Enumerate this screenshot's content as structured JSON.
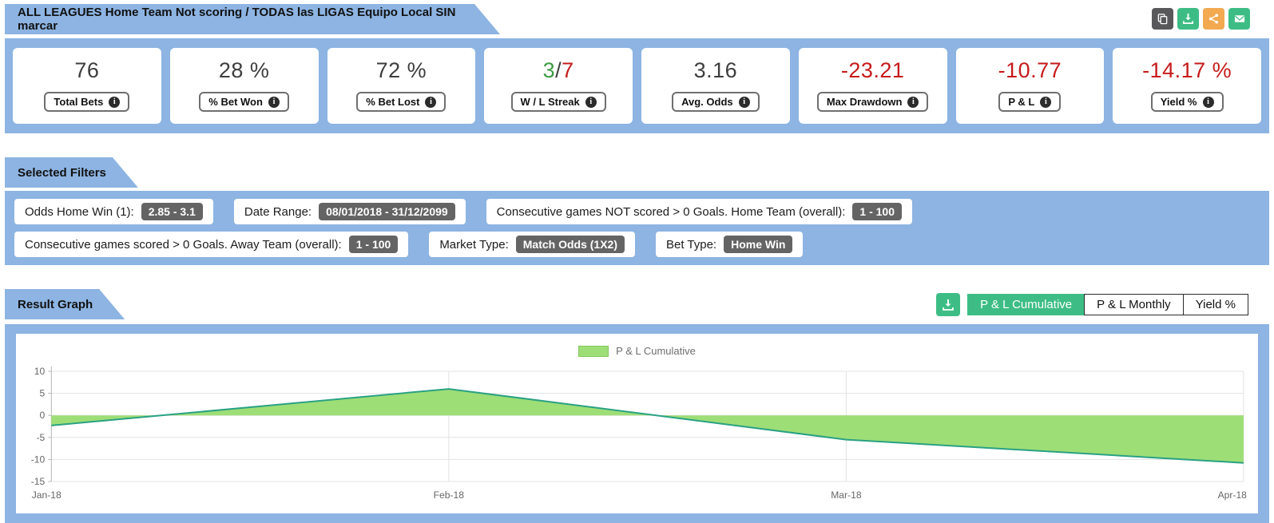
{
  "header": {
    "title": "ALL LEAGUES Home Team Not scoring / TODAS las LIGAS Equipo Local SIN marcar",
    "actions": {
      "copy_color": "#58585a",
      "download_color": "#3dbd85",
      "share_color": "#f2a950",
      "email_color": "#3dbd85"
    }
  },
  "stats": [
    {
      "value": "76",
      "label": "Total Bets"
    },
    {
      "value": "28 %",
      "label": "% Bet Won"
    },
    {
      "value": "72 %",
      "label": "% Bet Lost"
    },
    {
      "label": "W / L Streak",
      "parts": {
        "win": "3",
        "sep": "/",
        "loss": "7"
      }
    },
    {
      "value": "3.16",
      "label": "Avg. Odds"
    },
    {
      "value": "-23.21",
      "label": "Max Drawdown"
    },
    {
      "value": "-10.77",
      "label": "P & L"
    },
    {
      "value": "-14.17 %",
      "label": "Yield %"
    }
  ],
  "filters": {
    "title": "Selected Filters",
    "rows": [
      [
        {
          "label": "Odds Home Win (1):",
          "value": "2.85 - 3.1"
        },
        {
          "label": "Date Range:",
          "value": "08/01/2018 - 31/12/2099"
        },
        {
          "label": "Consecutive games NOT scored > 0 Goals. Home Team (overall):",
          "value": "1 - 100"
        }
      ],
      [
        {
          "label": "Consecutive games scored > 0 Goals. Away Team (overall):",
          "value": "1 - 100"
        },
        {
          "label": "Market Type:",
          "value": "Match Odds (1X2)"
        },
        {
          "label": "Bet Type:",
          "value": "Home Win"
        }
      ]
    ]
  },
  "result_graph": {
    "title": "Result Graph",
    "tabs": [
      {
        "label": "P & L Cumulative",
        "active": true
      },
      {
        "label": "P & L Monthly",
        "active": false
      },
      {
        "label": "Yield %",
        "active": false
      }
    ]
  },
  "chart_data": {
    "type": "area",
    "legend": "P & L Cumulative",
    "x": [
      "Jan-18",
      "Feb-18",
      "Mar-18",
      "Apr-18"
    ],
    "values": [
      -2.3,
      6,
      -5.5,
      -10.77
    ],
    "ylim": [
      -15,
      10
    ],
    "yticks": [
      10,
      5,
      0,
      -5,
      -10,
      -15
    ],
    "fill_color": "#9ede77",
    "line_color": "#2aa183",
    "grid": true,
    "legend_position": "top-center"
  }
}
